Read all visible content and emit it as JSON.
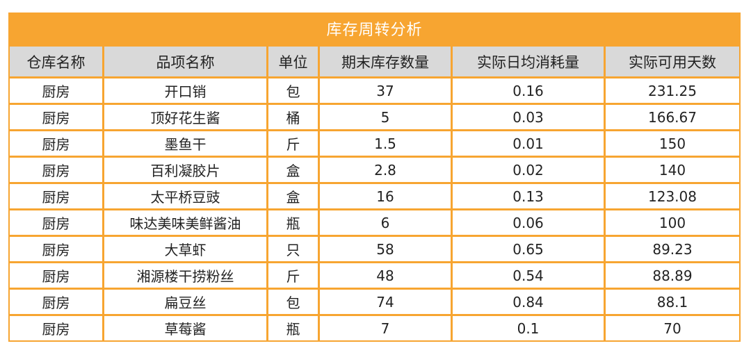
{
  "table": {
    "title": "库存周转分析",
    "headers": [
      "仓库名称",
      "品项名称",
      "单位",
      "期末库存数量",
      "实际日均消耗量",
      "实际可用天数"
    ],
    "rows": [
      [
        "厨房",
        "开口销",
        "包",
        "37",
        "0.16",
        "231.25"
      ],
      [
        "厨房",
        "顶好花生酱",
        "桶",
        "5",
        "0.03",
        "166.67"
      ],
      [
        "厨房",
        "墨鱼干",
        "斤",
        "1.5",
        "0.01",
        "150"
      ],
      [
        "厨房",
        "百利凝胶片",
        "盒",
        "2.8",
        "0.02",
        "140"
      ],
      [
        "厨房",
        "太平桥豆豉",
        "盒",
        "16",
        "0.13",
        "123.08"
      ],
      [
        "厨房",
        "味达美味美鲜酱油",
        "瓶",
        "6",
        "0.06",
        "100"
      ],
      [
        "厨房",
        "大草虾",
        "只",
        "58",
        "0.65",
        "89.23"
      ],
      [
        "厨房",
        "湘源楼干捞粉丝",
        "斤",
        "48",
        "0.54",
        "88.89"
      ],
      [
        "厨房",
        "扁豆丝",
        "包",
        "74",
        "0.84",
        "88.1"
      ],
      [
        "厨房",
        "草莓酱",
        "瓶",
        "7",
        "0.1",
        "70"
      ]
    ]
  },
  "colors": {
    "header_band": "#f7a531",
    "column_header_bg": "#d9d9d9",
    "cell_bg": "#ffffff"
  }
}
